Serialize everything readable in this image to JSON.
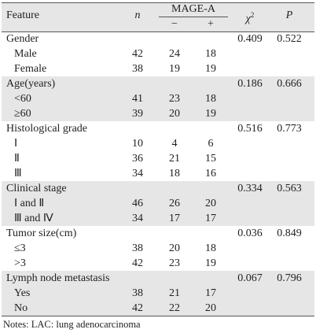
{
  "header": {
    "feature": "Feature",
    "n": "n",
    "group": "MAGE-A",
    "minus": "−",
    "plus": "+",
    "chi": "χ",
    "chi_sup": "2",
    "p": "P"
  },
  "groups": [
    {
      "name": "Gender",
      "chi2": "0.409",
      "p": "0.522",
      "items": [
        {
          "label": "Male",
          "n": 42,
          "minus": 24,
          "plus": 18
        },
        {
          "label": "Female",
          "n": 38,
          "minus": 19,
          "plus": 19
        }
      ]
    },
    {
      "name": "Age(years)",
      "chi2": "0.186",
      "p": "0.666",
      "items": [
        {
          "label": "<60",
          "n": 41,
          "minus": 23,
          "plus": 18
        },
        {
          "label": "≥60",
          "n": 39,
          "minus": 20,
          "plus": 19
        }
      ]
    },
    {
      "name": "Histological grade",
      "chi2": "0.516",
      "p": "0.773",
      "items": [
        {
          "label": "Ⅰ",
          "n": 10,
          "minus": 4,
          "plus": 6
        },
        {
          "label": "Ⅱ",
          "n": 36,
          "minus": 21,
          "plus": 15
        },
        {
          "label": "Ⅲ",
          "n": 34,
          "minus": 18,
          "plus": 16
        }
      ]
    },
    {
      "name": "Clinical stage",
      "chi2": "0.334",
      "p": "0.563",
      "items": [
        {
          "label": "Ⅰ and Ⅱ",
          "n": 46,
          "minus": 26,
          "plus": 20
        },
        {
          "label": "Ⅲ and Ⅳ",
          "n": 34,
          "minus": 17,
          "plus": 17
        }
      ]
    },
    {
      "name": "Tumor size(cm)",
      "chi2": "0.036",
      "p": "0.849",
      "items": [
        {
          "label": "≤3",
          "n": 38,
          "minus": 20,
          "plus": 18
        },
        {
          "label": ">3",
          "n": 42,
          "minus": 23,
          "plus": 19
        }
      ]
    },
    {
      "name": "Lymph node metastasis",
      "chi2": "0.067",
      "p": "0.796",
      "items": [
        {
          "label": "Yes",
          "n": 38,
          "minus": 21,
          "plus": 17
        },
        {
          "label": "No",
          "n": 42,
          "minus": 22,
          "plus": 20
        }
      ]
    }
  ],
  "note": "Notes: LAC: lung adenocarcinoma"
}
